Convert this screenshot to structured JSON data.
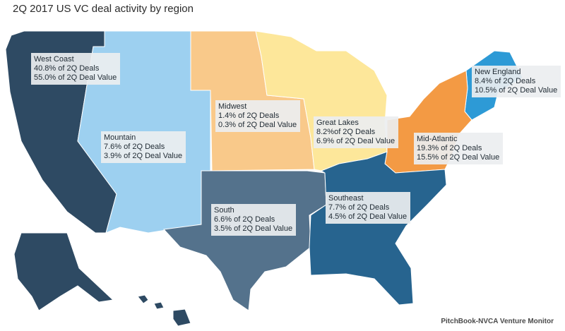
{
  "title": "2Q 2017 US VC deal activity by region",
  "source": "PitchBook-NVCA Venture Monitor",
  "regions": [
    {
      "key": "west_coast",
      "name": "West Coast",
      "deals": "40.8% of 2Q Deals",
      "value": "55.0% of 2Q Deal Value",
      "color": "#2e4a63"
    },
    {
      "key": "mountain",
      "name": "Mountain",
      "deals": "7.6% of 2Q Deals",
      "value": "3.9% of 2Q Deal Value",
      "color": "#9dd0f0"
    },
    {
      "key": "midwest",
      "name": "Midwest",
      "deals": "1.4% of 2Q Deals",
      "value": "0.3% of 2Q Deal Value",
      "color": "#f9c98a"
    },
    {
      "key": "great_lakes",
      "name": "Great Lakes",
      "deals": "8.2%of 2Q Deals",
      "value": "6.9% of 2Q Deal Value",
      "color": "#fde79a"
    },
    {
      "key": "new_england",
      "name": "New England",
      "deals": "8.4% of 2Q Deals",
      "value": "10.5% of 2Q Deal Value",
      "color": "#2d9ad6"
    },
    {
      "key": "mid_atlantic",
      "name": "Mid-Atlantic",
      "deals": "19.3% of 2Q Deals",
      "value": "15.5% of 2Q Deal Value",
      "color": "#f39a44"
    },
    {
      "key": "south",
      "name": "South",
      "deals": "6.6% of 2Q Deals",
      "value": "3.5% of 2Q Deal Value",
      "color": "#54728c"
    },
    {
      "key": "southeast",
      "name": "Southeast",
      "deals": "7.7% of 2Q Deals",
      "value": "4.5% of 2Q Deal Value",
      "color": "#27648f"
    }
  ]
}
